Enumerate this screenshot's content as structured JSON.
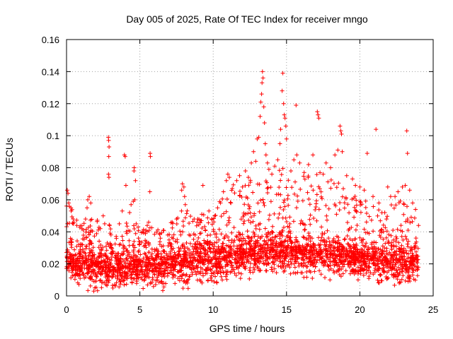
{
  "chart_data": {
    "type": "scatter",
    "title": "Day 005 of 2025, Rate Of TEC Index for receiver mngo",
    "xlabel": "GPS time / hours",
    "ylabel": "ROTI / TECUs",
    "xlim": [
      0,
      25
    ],
    "ylim": [
      0,
      0.16
    ],
    "x_ticks": [
      0,
      5,
      10,
      15,
      20,
      25
    ],
    "x_tick_labels": [
      "0",
      "5",
      "10",
      "15",
      "20",
      "25"
    ],
    "y_ticks": [
      0,
      0.02,
      0.04,
      0.06,
      0.08,
      0.1,
      0.12,
      0.14,
      0.16
    ],
    "y_tick_labels": [
      "0",
      "0.02",
      "0.04",
      "0.06",
      "0.08",
      "0.1",
      "0.12",
      "0.14",
      "0.16"
    ],
    "grid": true,
    "marker": "+",
    "color": "#ff0000",
    "series": [
      {
        "name": "ROTI",
        "points": [
          [
            0.05,
            0.066
          ],
          [
            0.1,
            0.064
          ],
          [
            0.15,
            0.058
          ],
          [
            0.3,
            0.055
          ],
          [
            0.5,
            0.046
          ],
          [
            0.7,
            0.044
          ],
          [
            1.05,
            0.042
          ],
          [
            1.3,
            0.048
          ],
          [
            1.4,
            0.055
          ],
          [
            1.45,
            0.06
          ],
          [
            1.55,
            0.062
          ],
          [
            1.65,
            0.058
          ],
          [
            2.3,
            0.042
          ],
          [
            2.5,
            0.05
          ],
          [
            2.6,
            0.045
          ],
          [
            2.85,
            0.099
          ],
          [
            2.87,
            0.097
          ],
          [
            2.9,
            0.093
          ],
          [
            2.88,
            0.087
          ],
          [
            2.86,
            0.076
          ],
          [
            2.89,
            0.074
          ],
          [
            3.6,
            0.045
          ],
          [
            3.8,
            0.053
          ],
          [
            3.95,
            0.088
          ],
          [
            4.0,
            0.087
          ],
          [
            4.05,
            0.069
          ],
          [
            4.3,
            0.052
          ],
          [
            4.4,
            0.057
          ],
          [
            4.55,
            0.059
          ],
          [
            4.6,
            0.078
          ],
          [
            4.62,
            0.08
          ],
          [
            4.7,
            0.072
          ],
          [
            4.65,
            0.06
          ],
          [
            4.75,
            0.045
          ],
          [
            5.2,
            0.04
          ],
          [
            5.5,
            0.044
          ],
          [
            5.6,
            0.046
          ],
          [
            5.7,
            0.089
          ],
          [
            5.72,
            0.087
          ],
          [
            5.68,
            0.065
          ],
          [
            6.4,
            0.036
          ],
          [
            6.6,
            0.041
          ],
          [
            6.9,
            0.038
          ],
          [
            7.2,
            0.046
          ],
          [
            7.5,
            0.048
          ],
          [
            7.85,
            0.066
          ],
          [
            7.9,
            0.07
          ],
          [
            8.0,
            0.068
          ],
          [
            8.05,
            0.062
          ],
          [
            8.1,
            0.057
          ],
          [
            8.7,
            0.048
          ],
          [
            8.9,
            0.046
          ],
          [
            9.2,
            0.047
          ],
          [
            9.3,
            0.069
          ],
          [
            9.8,
            0.038
          ],
          [
            10.1,
            0.05
          ],
          [
            10.3,
            0.055
          ],
          [
            10.5,
            0.058
          ],
          [
            10.7,
            0.065
          ],
          [
            10.9,
            0.072
          ],
          [
            11.0,
            0.076
          ],
          [
            11.1,
            0.074
          ],
          [
            11.3,
            0.067
          ],
          [
            11.6,
            0.072
          ],
          [
            11.8,
            0.075
          ],
          [
            12.0,
            0.068
          ],
          [
            12.2,
            0.078
          ],
          [
            12.4,
            0.074
          ],
          [
            12.6,
            0.083
          ],
          [
            12.75,
            0.09
          ],
          [
            12.9,
            0.084
          ],
          [
            13.0,
            0.098
          ],
          [
            13.1,
            0.099
          ],
          [
            13.2,
            0.112
          ],
          [
            13.25,
            0.121
          ],
          [
            13.3,
            0.126
          ],
          [
            13.33,
            0.133
          ],
          [
            13.36,
            0.14
          ],
          [
            13.4,
            0.136
          ],
          [
            13.45,
            0.118
          ],
          [
            13.5,
            0.108
          ],
          [
            13.55,
            0.095
          ],
          [
            13.6,
            0.088
          ],
          [
            13.7,
            0.083
          ],
          [
            13.8,
            0.079
          ],
          [
            14.0,
            0.076
          ],
          [
            14.2,
            0.081
          ],
          [
            14.4,
            0.085
          ],
          [
            14.55,
            0.095
          ],
          [
            14.6,
            0.104
          ],
          [
            14.7,
            0.128
          ],
          [
            14.75,
            0.139
          ],
          [
            14.8,
            0.12
          ],
          [
            14.85,
            0.113
          ],
          [
            14.9,
            0.111
          ],
          [
            14.95,
            0.106
          ],
          [
            15.0,
            0.098
          ],
          [
            15.3,
            0.078
          ],
          [
            15.5,
            0.085
          ],
          [
            15.65,
            0.119
          ],
          [
            15.7,
            0.088
          ],
          [
            15.9,
            0.083
          ],
          [
            16.2,
            0.077
          ],
          [
            16.5,
            0.082
          ],
          [
            16.8,
            0.088
          ],
          [
            17.1,
            0.115
          ],
          [
            17.15,
            0.113
          ],
          [
            17.2,
            0.111
          ],
          [
            17.5,
            0.076
          ],
          [
            17.7,
            0.083
          ],
          [
            18.0,
            0.08
          ],
          [
            18.3,
            0.088
          ],
          [
            18.5,
            0.091
          ],
          [
            18.65,
            0.106
          ],
          [
            18.7,
            0.103
          ],
          [
            18.75,
            0.101
          ],
          [
            18.8,
            0.09
          ],
          [
            19.1,
            0.075
          ],
          [
            19.5,
            0.073
          ],
          [
            19.7,
            0.069
          ],
          [
            20.0,
            0.068
          ],
          [
            20.3,
            0.066
          ],
          [
            20.5,
            0.089
          ],
          [
            20.9,
            0.062
          ],
          [
            21.1,
            0.104
          ],
          [
            21.3,
            0.058
          ],
          [
            21.7,
            0.052
          ],
          [
            21.9,
            0.068
          ],
          [
            22.1,
            0.062
          ],
          [
            22.4,
            0.062
          ],
          [
            22.6,
            0.065
          ],
          [
            22.9,
            0.068
          ],
          [
            23.1,
            0.069
          ],
          [
            23.2,
            0.103
          ],
          [
            23.25,
            0.089
          ],
          [
            23.4,
            0.066
          ],
          [
            23.6,
            0.058
          ],
          [
            23.8,
            0.054
          ],
          [
            24.0,
            0.044
          ]
        ],
        "baseline": [
          [
            0,
            0.022
          ],
          [
            1,
            0.02
          ],
          [
            2,
            0.018
          ],
          [
            3,
            0.017
          ],
          [
            4,
            0.017
          ],
          [
            5,
            0.018
          ],
          [
            6,
            0.018
          ],
          [
            7,
            0.019
          ],
          [
            8,
            0.02
          ],
          [
            9,
            0.021
          ],
          [
            10,
            0.022
          ],
          [
            11,
            0.024
          ],
          [
            12,
            0.025
          ],
          [
            13,
            0.026
          ],
          [
            14,
            0.027
          ],
          [
            15,
            0.027
          ],
          [
            16,
            0.026
          ],
          [
            17,
            0.026
          ],
          [
            18,
            0.025
          ],
          [
            19,
            0.024
          ],
          [
            20,
            0.023
          ],
          [
            21,
            0.022
          ],
          [
            22,
            0.021
          ],
          [
            23,
            0.021
          ],
          [
            24,
            0.02
          ]
        ],
        "envelope": [
          [
            0,
            0.06
          ],
          [
            1,
            0.045
          ],
          [
            2,
            0.05
          ],
          [
            3,
            0.045
          ],
          [
            4,
            0.048
          ],
          [
            5,
            0.045
          ],
          [
            6,
            0.042
          ],
          [
            7,
            0.045
          ],
          [
            8,
            0.055
          ],
          [
            9,
            0.05
          ],
          [
            10,
            0.055
          ],
          [
            11,
            0.068
          ],
          [
            12,
            0.072
          ],
          [
            13,
            0.075
          ],
          [
            14,
            0.078
          ],
          [
            15,
            0.08
          ],
          [
            16,
            0.078
          ],
          [
            17,
            0.078
          ],
          [
            18,
            0.076
          ],
          [
            19,
            0.068
          ],
          [
            20,
            0.062
          ],
          [
            21,
            0.058
          ],
          [
            22,
            0.056
          ],
          [
            23,
            0.062
          ],
          [
            24,
            0.045
          ]
        ]
      }
    ]
  }
}
